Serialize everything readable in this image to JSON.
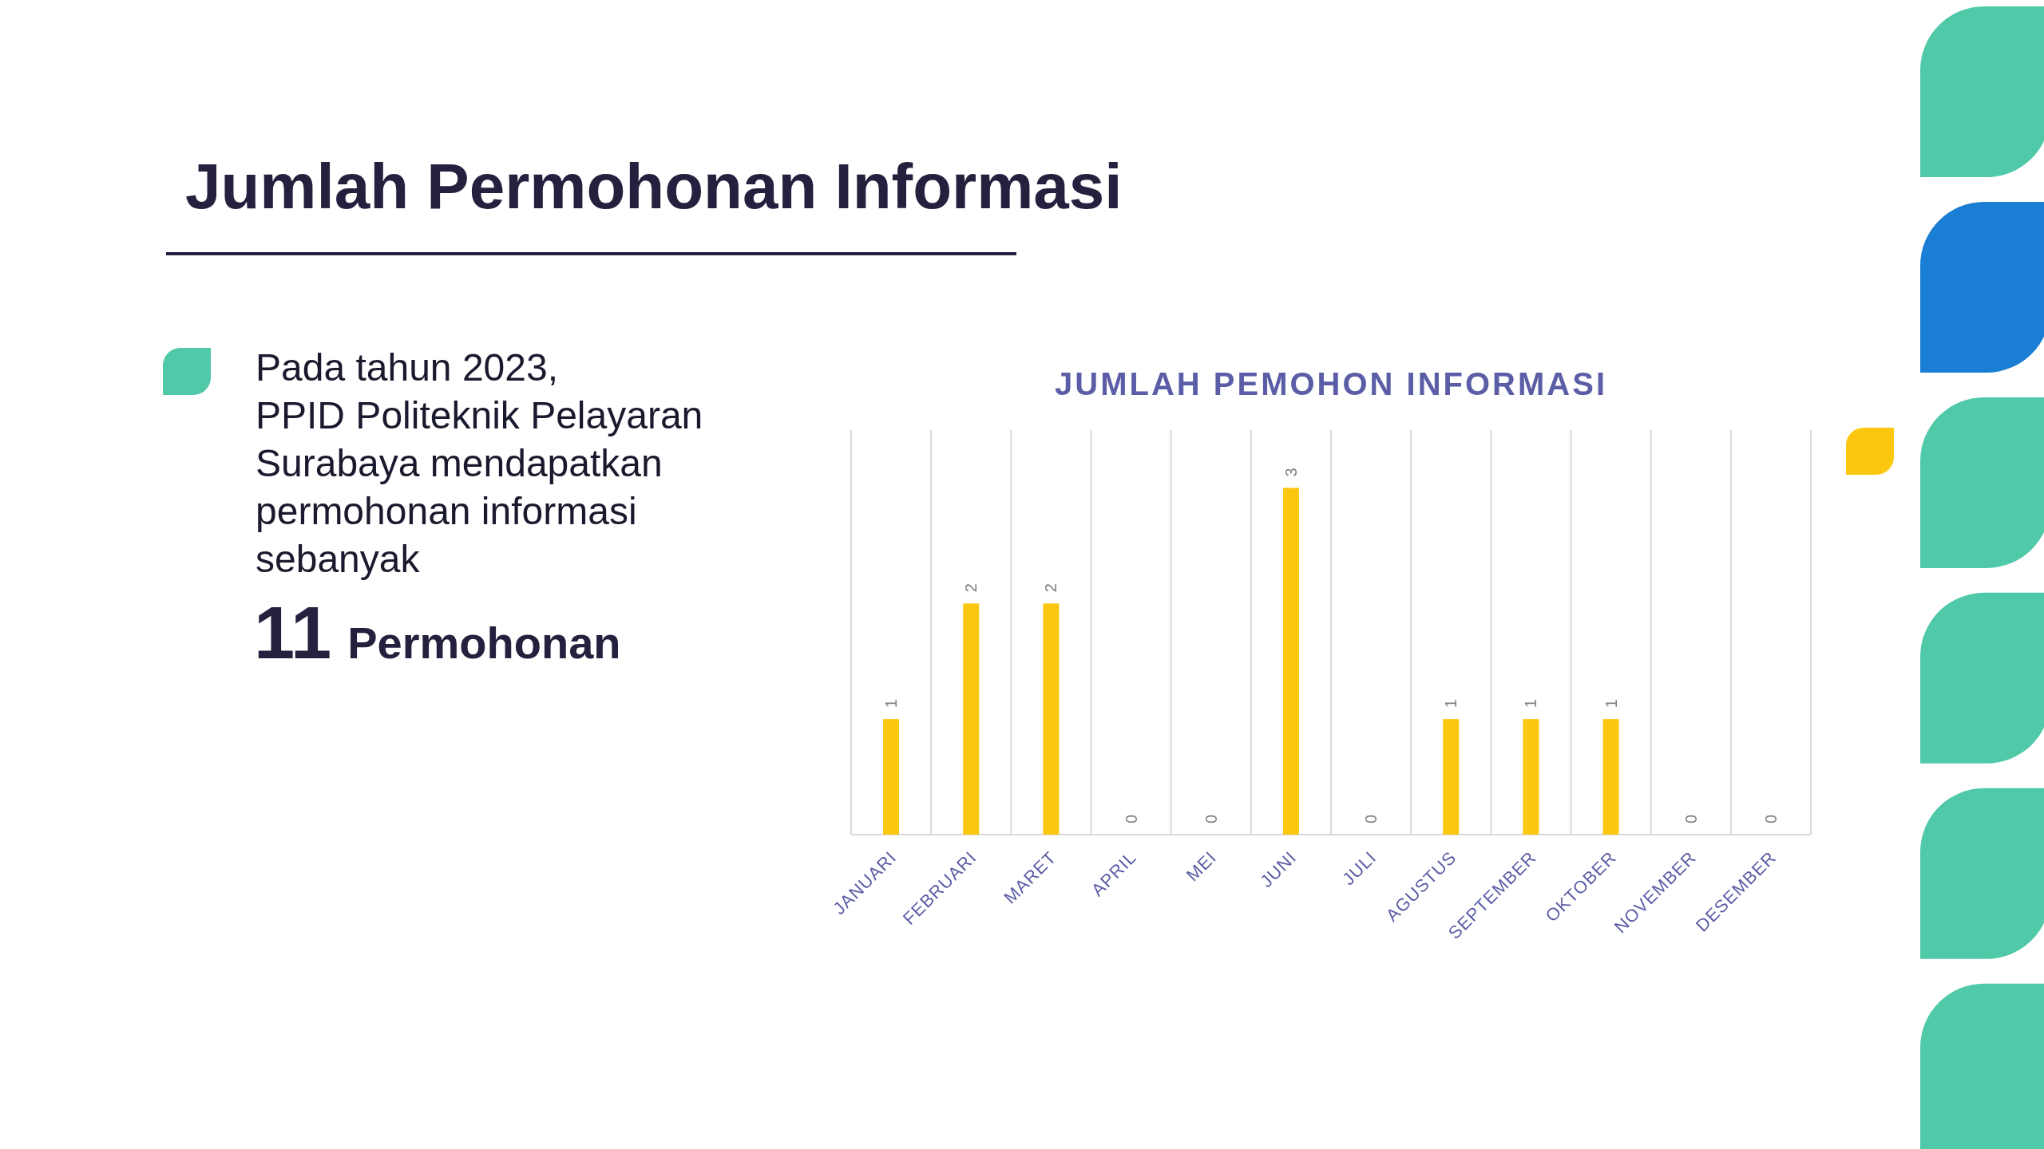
{
  "chart_data": {
    "type": "bar",
    "title": "JUMLAH PEMOHON INFORMASI",
    "categories": [
      "JANUARI",
      "FEBRUARI",
      "MARET",
      "APRIL",
      "MEI",
      "JUNI",
      "JULI",
      "AGUSTUS",
      "SEPTEMBER",
      "OKTOBER",
      "NOVEMBER",
      "DESEMBER"
    ],
    "values": [
      1,
      2,
      2,
      0,
      0,
      3,
      0,
      1,
      1,
      1,
      0,
      0
    ],
    "color": "#fcc80f",
    "ylim": [
      0,
      3.5
    ],
    "data_labels": true,
    "grid": "x",
    "annotations": [
      "Jumlah Permohonan Informasi",
      "Pada tahun 2023,\nPPID Politeknik Pelayaran\nSurabaya mendapatkan\npermohonan informasi\nsebanyak",
      "11 Permohonan"
    ]
  }
}
